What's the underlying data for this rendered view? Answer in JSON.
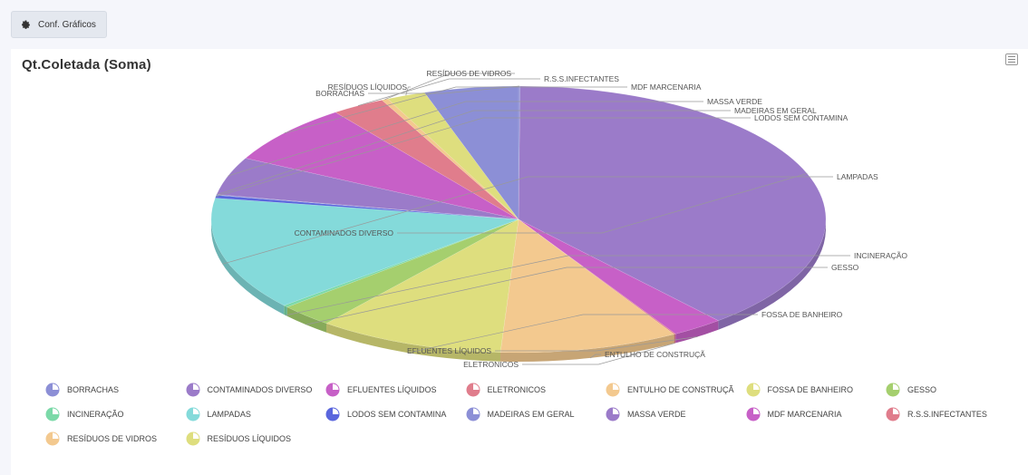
{
  "toolbar": {
    "config_label": "Conf. Gráficos"
  },
  "chart_data": {
    "type": "pie",
    "title": "Qt.Coletada (Soma)",
    "slices": [
      {
        "label": "BORRACHAS",
        "value": 0.1,
        "color": "#8c8fd6"
      },
      {
        "label": "CONTAMINADOS DIVERSO",
        "value": 45.3,
        "color": "#9b7bc9"
      },
      {
        "label": "EFLUENTES LÍQUIDOS",
        "value": 3.2,
        "color": "#c760c7"
      },
      {
        "label": "ELETRONICOS",
        "value": 0.1,
        "color": "#e07d8c"
      },
      {
        "label": "ENTULHO DE CONSTRUÇÃ",
        "value": 11.0,
        "color": "#f3c98f"
      },
      {
        "label": "FOSSA DE BANHEIRO",
        "value": 11.5,
        "color": "#dede7e"
      },
      {
        "label": "GESSO",
        "value": 3.3,
        "color": "#a5cf6e"
      },
      {
        "label": "INCINERAÇÃO",
        "value": 0.3,
        "color": "#7bd9a8"
      },
      {
        "label": "LAMPADAS",
        "value": 16.1,
        "color": "#84dada"
      },
      {
        "label": "LODOS SEM CONTAMINA",
        "value": 0.4,
        "color": "#5a66dd"
      },
      {
        "label": "MADEIRAS EM GERAL",
        "value": 0.1,
        "color": "#8c8fd6"
      },
      {
        "label": "MASSA VERDE",
        "value": 5.4,
        "color": "#9b7bc9"
      },
      {
        "label": "MDF MARCENARIA",
        "value": 8.5,
        "color": "#c760c7"
      },
      {
        "label": "R.S.S.INFECTANTES",
        "value": 3.3,
        "color": "#e07d8c"
      },
      {
        "label": "RESÍDUOS DE VIDROS",
        "value": 0.4,
        "color": "#f3c98f"
      },
      {
        "label": "RESÍDUOS LÍQUIDOS",
        "value": 2.4,
        "color": "#dede7e"
      },
      {
        "label": "BORRACHAS",
        "value": 5.8,
        "color": "#8c8fd6"
      }
    ],
    "legend_placement": "bottom"
  }
}
